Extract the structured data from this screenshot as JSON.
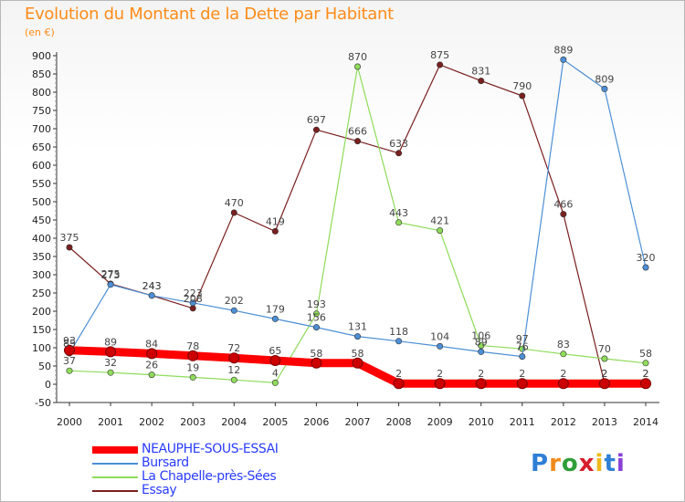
{
  "title": "Evolution du Montant de la Dette par Habitant",
  "unit_label": "(en €)",
  "logo_text": "Proxiti",
  "chart_data": {
    "type": "line",
    "title": "Evolution du Montant de la Dette par Habitant",
    "ylabel": "(en €)",
    "xlabel": "",
    "x": [
      2000,
      2001,
      2002,
      2003,
      2004,
      2005,
      2006,
      2007,
      2008,
      2009,
      2010,
      2011,
      2012,
      2013,
      2014
    ],
    "yticks": [
      -50,
      0,
      50,
      100,
      150,
      200,
      250,
      300,
      350,
      400,
      450,
      500,
      550,
      600,
      650,
      700,
      750,
      800,
      850,
      900
    ],
    "ylim": [
      -50,
      900
    ],
    "grid": false,
    "legend_position": "bottom-left",
    "series": [
      {
        "name": "NEAUPHE-SOUS-ESSAI",
        "color": "#ff0000",
        "emphasis": true,
        "values": [
          93,
          89,
          84,
          78,
          72,
          65,
          58,
          58,
          2,
          2,
          2,
          2,
          2,
          2,
          2
        ]
      },
      {
        "name": "Bursard",
        "color": "#4d8fd6",
        "values": [
          85,
          273,
          243,
          223,
          202,
          179,
          156,
          131,
          118,
          104,
          89,
          76,
          889,
          809,
          320
        ]
      },
      {
        "name": "La Chapelle-près-Sées",
        "color": "#8fdb5a",
        "values": [
          37,
          32,
          26,
          19,
          12,
          4,
          193,
          870,
          443,
          421,
          106,
          97,
          83,
          70,
          58
        ]
      },
      {
        "name": "Essay",
        "color": "#7a1f1f",
        "values": [
          375,
          275,
          243,
          208,
          470,
          419,
          697,
          666,
          633,
          875,
          831,
          790,
          466,
          2,
          2
        ]
      }
    ]
  }
}
